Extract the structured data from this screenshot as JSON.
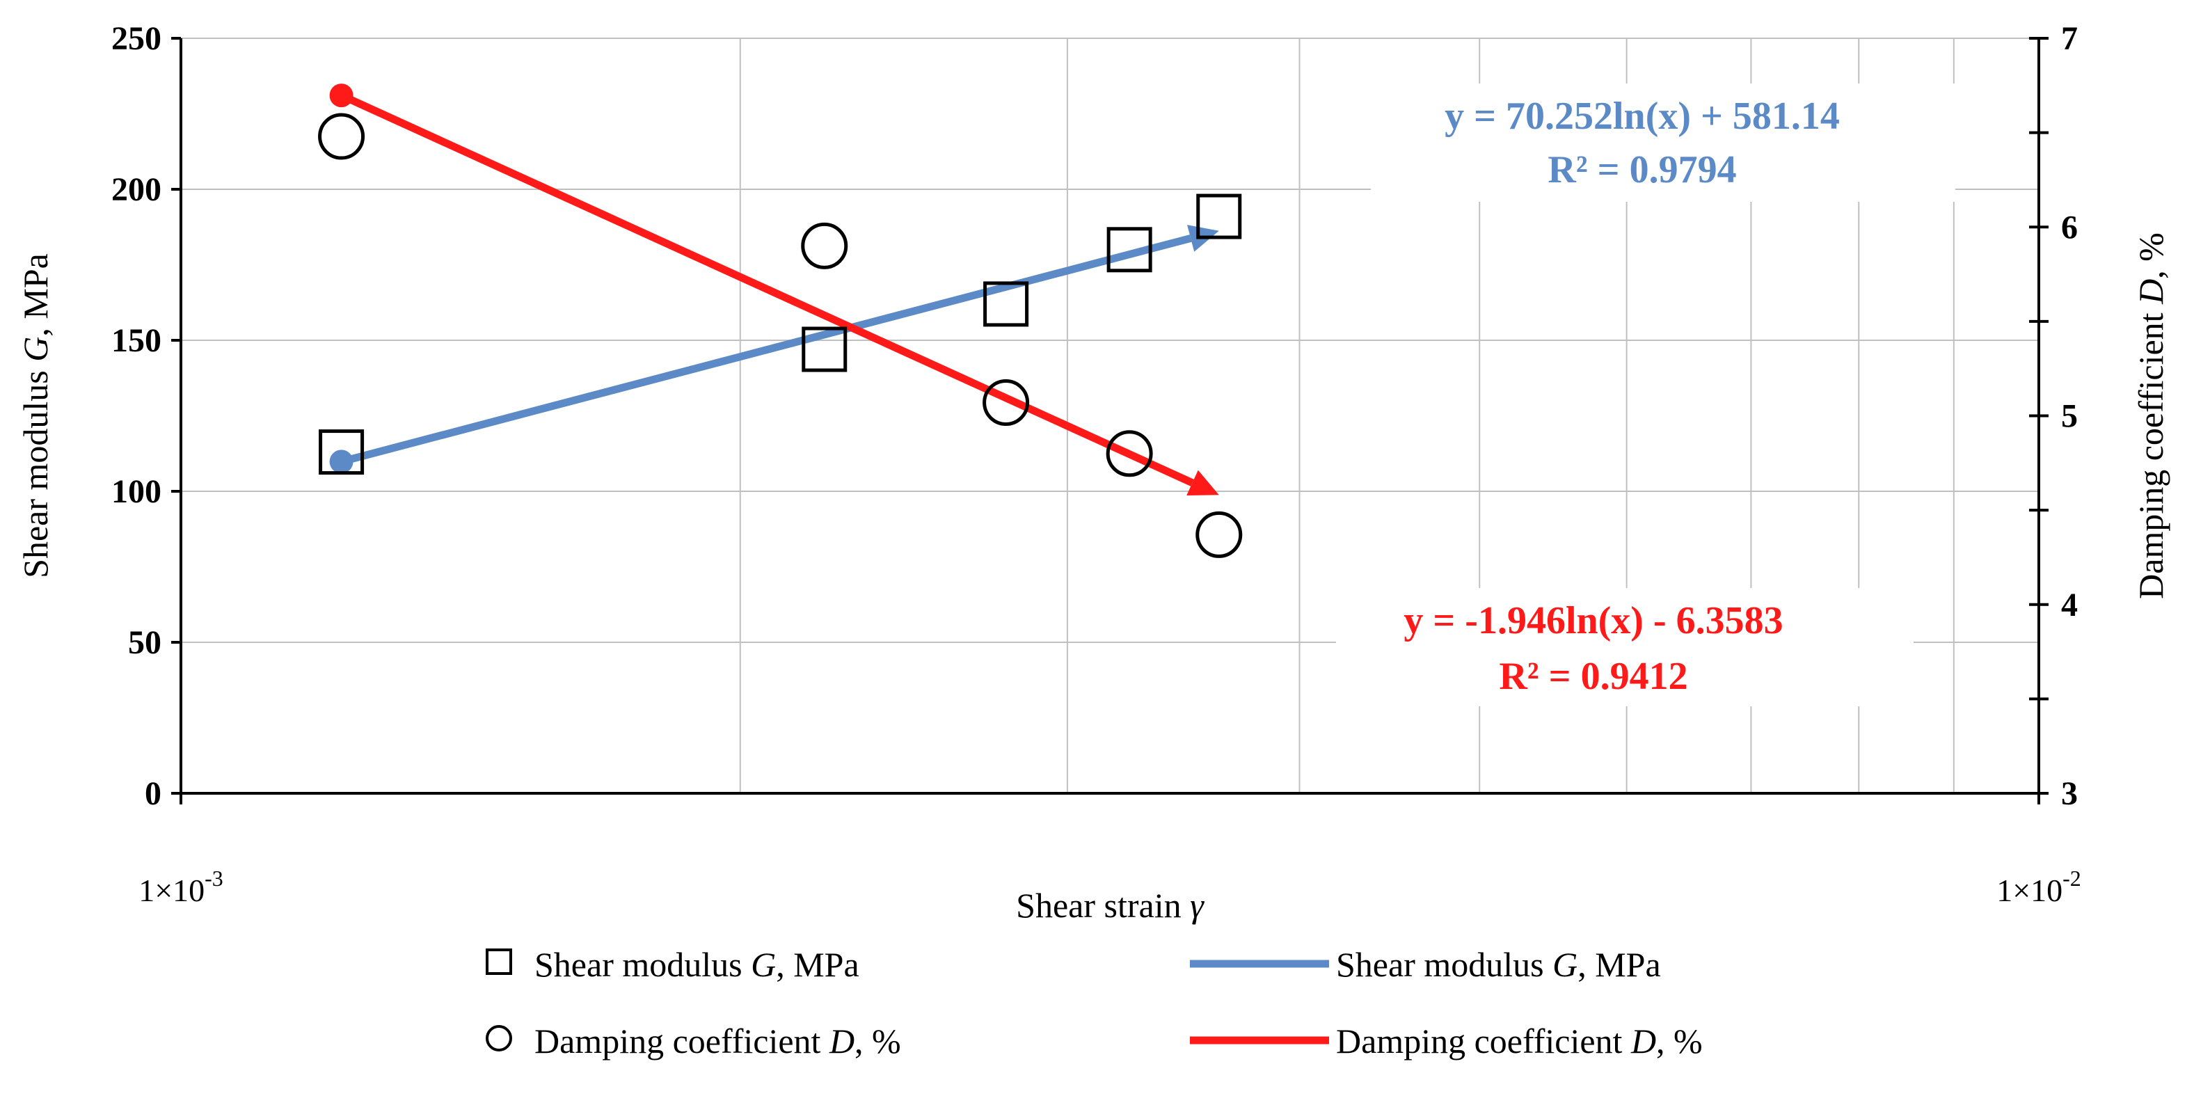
{
  "chart_data": {
    "type": "scatter",
    "x_axis": {
      "label_prefix": "Shear strain ",
      "label_symbol": "γ",
      "scale": "log",
      "range": [
        0.001,
        0.01
      ],
      "tick_labels": [
        "1×10",
        "1×10"
      ],
      "tick_exponents": [
        "-3",
        "-2"
      ],
      "tick_values": [
        0.001,
        0.01
      ]
    },
    "y_axis_left": {
      "label_prefix": "Shear modulus ",
      "label_symbol": "G",
      "label_suffix": ", MPa",
      "range": [
        0,
        250
      ],
      "ticks": [
        0,
        50,
        100,
        150,
        200,
        250
      ],
      "tick_labels": [
        "0",
        "50",
        "100",
        "150",
        "200",
        "250"
      ]
    },
    "y_axis_right": {
      "label_prefix": "Damping coefficient ",
      "label_symbol": "D",
      "label_suffix": ", %",
      "range": [
        3,
        7
      ],
      "ticks": [
        3,
        4,
        5,
        6,
        7
      ],
      "tick_labels": [
        "3",
        "4",
        "5",
        "6",
        "7"
      ]
    },
    "series": [
      {
        "name": "Shear modulus G, MPa",
        "kind": "points",
        "marker": "square",
        "axis": "left",
        "x": [
          0.00122,
          0.00222,
          0.00278,
          0.00324,
          0.00362
        ],
        "y": [
          113,
          147,
          162,
          180,
          191
        ]
      },
      {
        "name": "Damping coefficient D, %",
        "kind": "points",
        "marker": "circle",
        "axis": "right",
        "x": [
          0.00122,
          0.00222,
          0.00278,
          0.00324,
          0.00362
        ],
        "y": [
          6.48,
          5.9,
          5.07,
          4.8,
          4.37
        ]
      },
      {
        "name": "Shear modulus G, MPa",
        "kind": "trendline",
        "axis": "left",
        "color": "#5b8ac6",
        "x_start": 0.00122,
        "x_end": 0.00362,
        "coef_a": 70.252,
        "coef_b": 581.14,
        "equation": "y = 70.252ln(x) + 581.14",
        "r2": "R² = 0.9794"
      },
      {
        "name": "Damping coefficient D, %",
        "kind": "trendline",
        "axis": "right",
        "color": "#ff1a1a",
        "x_start": 0.00122,
        "x_end": 0.00362,
        "coef_a": -1.946,
        "coef_b": -6.3583,
        "equation": "y = -1.946ln(x) - 6.3583",
        "r2": "R² = 0.9412"
      }
    ],
    "legend": {
      "position": "bottom",
      "entries": [
        {
          "marker": "square",
          "prefix": "Shear modulus ",
          "symbol": "G",
          "suffix": ", MPa"
        },
        {
          "marker": "blue-line",
          "prefix": "Shear modulus ",
          "symbol": "G",
          "suffix": ", MPa"
        },
        {
          "marker": "circle",
          "prefix": "Damping coefficient ",
          "symbol": "D",
          "suffix": ", %"
        },
        {
          "marker": "red-line",
          "prefix": "Damping coefficient ",
          "symbol": "D",
          "suffix": ", %"
        }
      ]
    },
    "grid": true,
    "colors": {
      "blue": "#5b8ac6",
      "red": "#ff1a1a",
      "grid": "#c0c0c0",
      "axis": "#000000"
    }
  }
}
